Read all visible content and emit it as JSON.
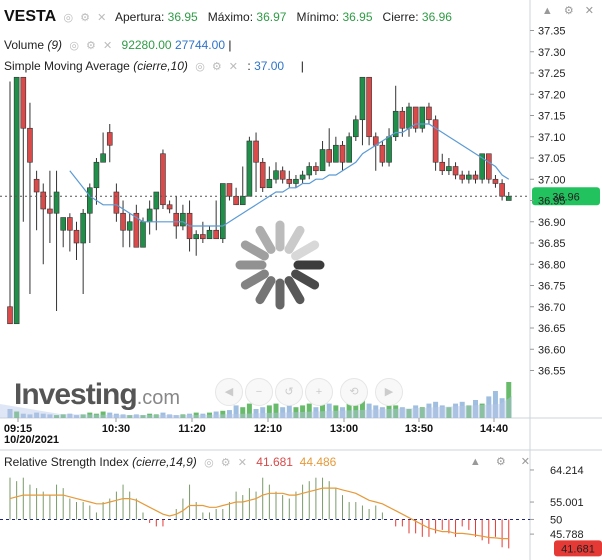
{
  "header": {
    "symbol": "VESTA",
    "open_label": "Apertura:",
    "open_value": "36.95",
    "high_label": "Máximo:",
    "high_value": "36.97",
    "low_label": "Mínimo:",
    "low_value": "36.95",
    "close_label": "Cierre:",
    "close_value": "36.96"
  },
  "volume_legend": {
    "label": "Volume",
    "param": "(9)",
    "value1": "92280.00",
    "value2": "27744.00"
  },
  "sma_legend": {
    "label": "Simple Moving Average",
    "param": "(cierre,10)",
    "value": "37.00"
  },
  "rsi_legend": {
    "label": "Relative Strength Index",
    "param": "(cierre,14,9)",
    "value1": "41.681",
    "value2": "44.486"
  },
  "watermark": {
    "brand": "Investing",
    "suffix": ".com"
  },
  "colors": {
    "up": "#1f8f4a",
    "down": "#d94a4a",
    "sma": "#5b9bd5",
    "rsi": "#7a9a6a",
    "rsi_signal": "#e69a3a",
    "price_tag": "#22c35e",
    "rsi_tag": "#e53935"
  },
  "chart_data": [
    {
      "type": "candlestick",
      "x_tick_labels": [
        "09:15",
        "10:30",
        "11:20",
        "12:10",
        "13:00",
        "13:50",
        "14:40"
      ],
      "date_label": "10/20/2021",
      "y_tick_labels": [
        "37.35",
        "37.30",
        "37.25",
        "37.20",
        "37.15",
        "37.10",
        "37.05",
        "37.00",
        "36.95",
        "36.90",
        "36.85",
        "36.80",
        "36.75",
        "36.70",
        "36.65",
        "36.60",
        "36.55"
      ],
      "ylim": [
        36.49,
        37.37
      ],
      "last_price": 36.96,
      "last_price_label": "36.96",
      "candles": [
        [
          36.7,
          36.66,
          37.23,
          36.66
        ],
        [
          36.66,
          37.24,
          37.24,
          36.66
        ],
        [
          37.24,
          37.12,
          37.24,
          36.9
        ],
        [
          37.12,
          37.04,
          37.18,
          36.73
        ],
        [
          37.0,
          36.97,
          37.02,
          36.88
        ],
        [
          36.97,
          36.93,
          36.99,
          36.8
        ],
        [
          36.93,
          36.92,
          37.02,
          36.85
        ],
        [
          36.92,
          36.97,
          37.02,
          36.69
        ],
        [
          36.88,
          36.91,
          36.91,
          36.84
        ],
        [
          36.91,
          36.88,
          36.92,
          36.83
        ],
        [
          36.88,
          36.85,
          36.9,
          36.81
        ],
        [
          36.85,
          36.92,
          36.93,
          36.73
        ],
        [
          36.92,
          36.98,
          36.99,
          36.85
        ],
        [
          36.98,
          37.04,
          37.05,
          36.94
        ],
        [
          37.04,
          37.06,
          37.11,
          37.04
        ],
        [
          37.11,
          37.08,
          37.13,
          37.04
        ],
        [
          36.97,
          36.92,
          36.99,
          36.9
        ],
        [
          36.92,
          36.88,
          36.95,
          36.84
        ],
        [
          36.88,
          36.9,
          36.92,
          36.84
        ],
        [
          36.92,
          36.84,
          36.94,
          36.84
        ],
        [
          36.84,
          36.9,
          36.91,
          36.84
        ],
        [
          36.9,
          36.93,
          36.95,
          36.87
        ],
        [
          36.93,
          36.97,
          36.97,
          36.88
        ],
        [
          37.06,
          36.94,
          37.07,
          36.93
        ],
        [
          36.94,
          36.93,
          36.95,
          36.92
        ],
        [
          36.92,
          36.89,
          36.96,
          36.86
        ],
        [
          36.89,
          36.92,
          36.94,
          36.88
        ],
        [
          36.92,
          36.86,
          36.95,
          36.83
        ],
        [
          36.86,
          36.87,
          36.88,
          36.82
        ],
        [
          36.87,
          36.86,
          36.9,
          36.85
        ],
        [
          36.86,
          36.88,
          36.89,
          36.86
        ],
        [
          36.88,
          36.86,
          36.95,
          36.86
        ],
        [
          36.86,
          36.99,
          36.99,
          36.85
        ],
        [
          36.99,
          36.96,
          36.99,
          36.95
        ],
        [
          36.96,
          36.94,
          36.98,
          36.94
        ],
        [
          36.94,
          36.96,
          37.03,
          36.94
        ],
        [
          36.96,
          37.09,
          37.1,
          36.96
        ],
        [
          37.09,
          37.04,
          37.11,
          36.97
        ],
        [
          37.04,
          36.98,
          37.05,
          36.97
        ],
        [
          36.98,
          37.0,
          37.03,
          36.98
        ],
        [
          37.0,
          37.02,
          37.04,
          36.99
        ],
        [
          37.02,
          37.0,
          37.03,
          36.99
        ],
        [
          37.0,
          36.99,
          37.02,
          36.98
        ],
        [
          36.99,
          37.0,
          37.01,
          36.98
        ],
        [
          37.0,
          37.01,
          37.02,
          36.99
        ],
        [
          37.01,
          37.03,
          37.04,
          37.0
        ],
        [
          37.03,
          37.02,
          37.04,
          37.01
        ],
        [
          37.02,
          37.07,
          37.09,
          37.02
        ],
        [
          37.07,
          37.04,
          37.12,
          37.03
        ],
        [
          37.04,
          37.08,
          37.1,
          37.04
        ],
        [
          37.08,
          37.04,
          37.09,
          37.02
        ],
        [
          37.04,
          37.1,
          37.11,
          37.04
        ],
        [
          37.1,
          37.14,
          37.15,
          37.09
        ],
        [
          37.14,
          37.24,
          37.24,
          37.08
        ],
        [
          37.24,
          37.1,
          37.24,
          37.08
        ],
        [
          37.1,
          37.08,
          37.11,
          37.02
        ],
        [
          37.08,
          37.04,
          37.09,
          37.03
        ],
        [
          37.04,
          37.1,
          37.12,
          37.03
        ],
        [
          37.1,
          37.16,
          37.22,
          37.09
        ],
        [
          37.16,
          37.12,
          37.17,
          37.1
        ],
        [
          37.12,
          37.17,
          37.18,
          37.1
        ],
        [
          37.17,
          37.12,
          37.17,
          37.11
        ],
        [
          37.12,
          37.17,
          37.17,
          37.11
        ],
        [
          37.17,
          37.14,
          37.18,
          37.13
        ],
        [
          37.14,
          37.04,
          37.15,
          37.02
        ],
        [
          37.04,
          37.02,
          37.06,
          37.01
        ],
        [
          37.02,
          37.03,
          37.05,
          37.01
        ],
        [
          37.03,
          37.01,
          37.04,
          37.0
        ],
        [
          37.01,
          37.0,
          37.02,
          36.99
        ],
        [
          37.0,
          37.01,
          37.02,
          36.99
        ],
        [
          37.01,
          37.0,
          37.02,
          36.99
        ],
        [
          37.0,
          37.06,
          37.06,
          36.99
        ],
        [
          37.06,
          37.0,
          37.06,
          36.99
        ],
        [
          37.0,
          36.99,
          37.01,
          36.98
        ],
        [
          36.99,
          36.96,
          37.0,
          36.95
        ],
        [
          36.95,
          36.96,
          36.97,
          36.95
        ]
      ],
      "sma_values": [
        null,
        null,
        null,
        null,
        null,
        null,
        null,
        null,
        null,
        37.02,
        37.0,
        36.98,
        36.96,
        36.95,
        36.94,
        36.94,
        36.94,
        36.93,
        36.92,
        36.91,
        36.9,
        36.9,
        36.9,
        36.9,
        36.9,
        36.9,
        36.9,
        36.89,
        36.89,
        36.89,
        36.89,
        36.89,
        36.89,
        36.9,
        36.91,
        36.92,
        36.93,
        36.94,
        36.95,
        36.96,
        36.97,
        36.97,
        36.98,
        36.98,
        36.99,
        36.99,
        37.0,
        37.0,
        37.01,
        37.01,
        37.02,
        37.03,
        37.04,
        37.06,
        37.07,
        37.08,
        37.09,
        37.1,
        37.11,
        37.11,
        37.12,
        37.13,
        37.13,
        37.13,
        37.12,
        37.11,
        37.1,
        37.09,
        37.08,
        37.07,
        37.06,
        37.05,
        37.04,
        37.03,
        37.01,
        37.0
      ],
      "volume_values": [
        0.25,
        0.18,
        0.12,
        0.1,
        0.15,
        0.12,
        0.1,
        0.08,
        0.1,
        0.12,
        0.08,
        0.1,
        0.15,
        0.12,
        0.18,
        0.15,
        0.12,
        0.1,
        0.08,
        0.1,
        0.08,
        0.12,
        0.1,
        0.15,
        0.1,
        0.08,
        0.1,
        0.12,
        0.15,
        0.12,
        0.15,
        0.18,
        0.2,
        0.22,
        0.35,
        0.3,
        0.4,
        0.25,
        0.3,
        0.35,
        0.4,
        0.3,
        0.35,
        0.3,
        0.35,
        0.4,
        0.3,
        0.45,
        0.4,
        0.35,
        0.3,
        0.4,
        0.35,
        0.5,
        0.4,
        0.35,
        0.3,
        0.4,
        0.35,
        0.3,
        0.25,
        0.35,
        0.3,
        0.4,
        0.45,
        0.35,
        0.3,
        0.4,
        0.45,
        0.35,
        0.5,
        0.4,
        0.6,
        0.75,
        0.55,
        1.0
      ]
    },
    {
      "type": "rsi",
      "title": "Relative Strength Index",
      "y_tick_labels": [
        "64.214",
        "55.001",
        "50",
        "45.788"
      ],
      "ylim": [
        39.5,
        66.5
      ],
      "midline": 50,
      "last_value_label": "41.681",
      "rsi_values": [
        62,
        61,
        62,
        60,
        59,
        58,
        57,
        60,
        59,
        56,
        55,
        55,
        54,
        52,
        55,
        56,
        58,
        60,
        58,
        56,
        52,
        49,
        48,
        48,
        50,
        53,
        56,
        60,
        55,
        52,
        52,
        53,
        53,
        55,
        58,
        57,
        59,
        58,
        62,
        60,
        58,
        57,
        56,
        58,
        60,
        61,
        62,
        62,
        61,
        59,
        57,
        55,
        55,
        54,
        53,
        54,
        52,
        50,
        48,
        48,
        46,
        46,
        45,
        45,
        46,
        47,
        46,
        45,
        48,
        47,
        45,
        44,
        43,
        45,
        42,
        41.7
      ],
      "signal_values": [
        56,
        56.5,
        57,
        57,
        57,
        57,
        57,
        57,
        57,
        56.5,
        56,
        55.5,
        55,
        54.5,
        54.5,
        55,
        55.5,
        56,
        56,
        55.5,
        54.5,
        53.5,
        52.5,
        51.5,
        51,
        51.5,
        52.5,
        54,
        54,
        54,
        53.5,
        53.5,
        54,
        54.5,
        55,
        55,
        55.5,
        56,
        57,
        57.5,
        57.5,
        57.5,
        57,
        57,
        57.5,
        58,
        58.5,
        59,
        59,
        59,
        58.5,
        58,
        57.5,
        56.5,
        55.5,
        55,
        54.5,
        53.5,
        52.5,
        51.5,
        50.5,
        49.5,
        48.5,
        47.5,
        47,
        46.5,
        46.5,
        46,
        46,
        45.8,
        45.5,
        45.2,
        44.8,
        44.7,
        44.5,
        44.5
      ]
    }
  ]
}
